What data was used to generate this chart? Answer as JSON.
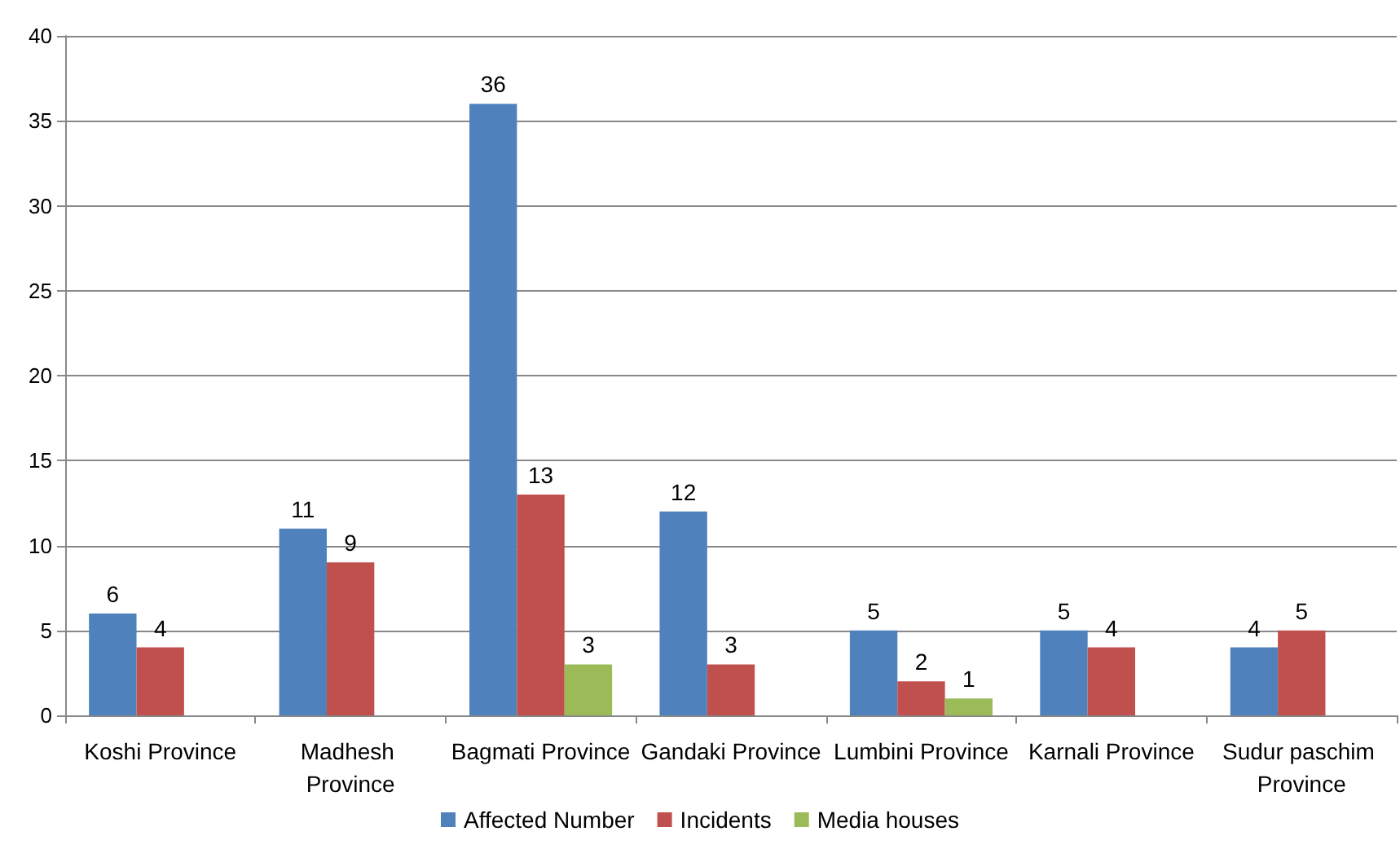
{
  "chart_data": {
    "type": "bar",
    "categories": [
      "Koshi Province",
      "Madhesh Province",
      "Bagmati Province",
      "Gandaki Province",
      "Lumbini Province",
      "Karnali Province",
      "Sudur paschim Province"
    ],
    "series": [
      {
        "name": "Affected Number",
        "color": "#4f81bd",
        "values": [
          6,
          11,
          36,
          12,
          5,
          5,
          4
        ]
      },
      {
        "name": "Incidents",
        "color": "#c0504d",
        "values": [
          4,
          9,
          13,
          3,
          2,
          4,
          5
        ]
      },
      {
        "name": "Media houses",
        "color": "#9bbb59",
        "values": [
          null,
          null,
          3,
          null,
          1,
          null,
          null
        ]
      }
    ],
    "ylim": [
      0,
      40
    ],
    "yticks": [
      0,
      5,
      10,
      15,
      20,
      25,
      30,
      35,
      40
    ],
    "grid": "y",
    "legend": "bottom",
    "data_labels": true
  }
}
